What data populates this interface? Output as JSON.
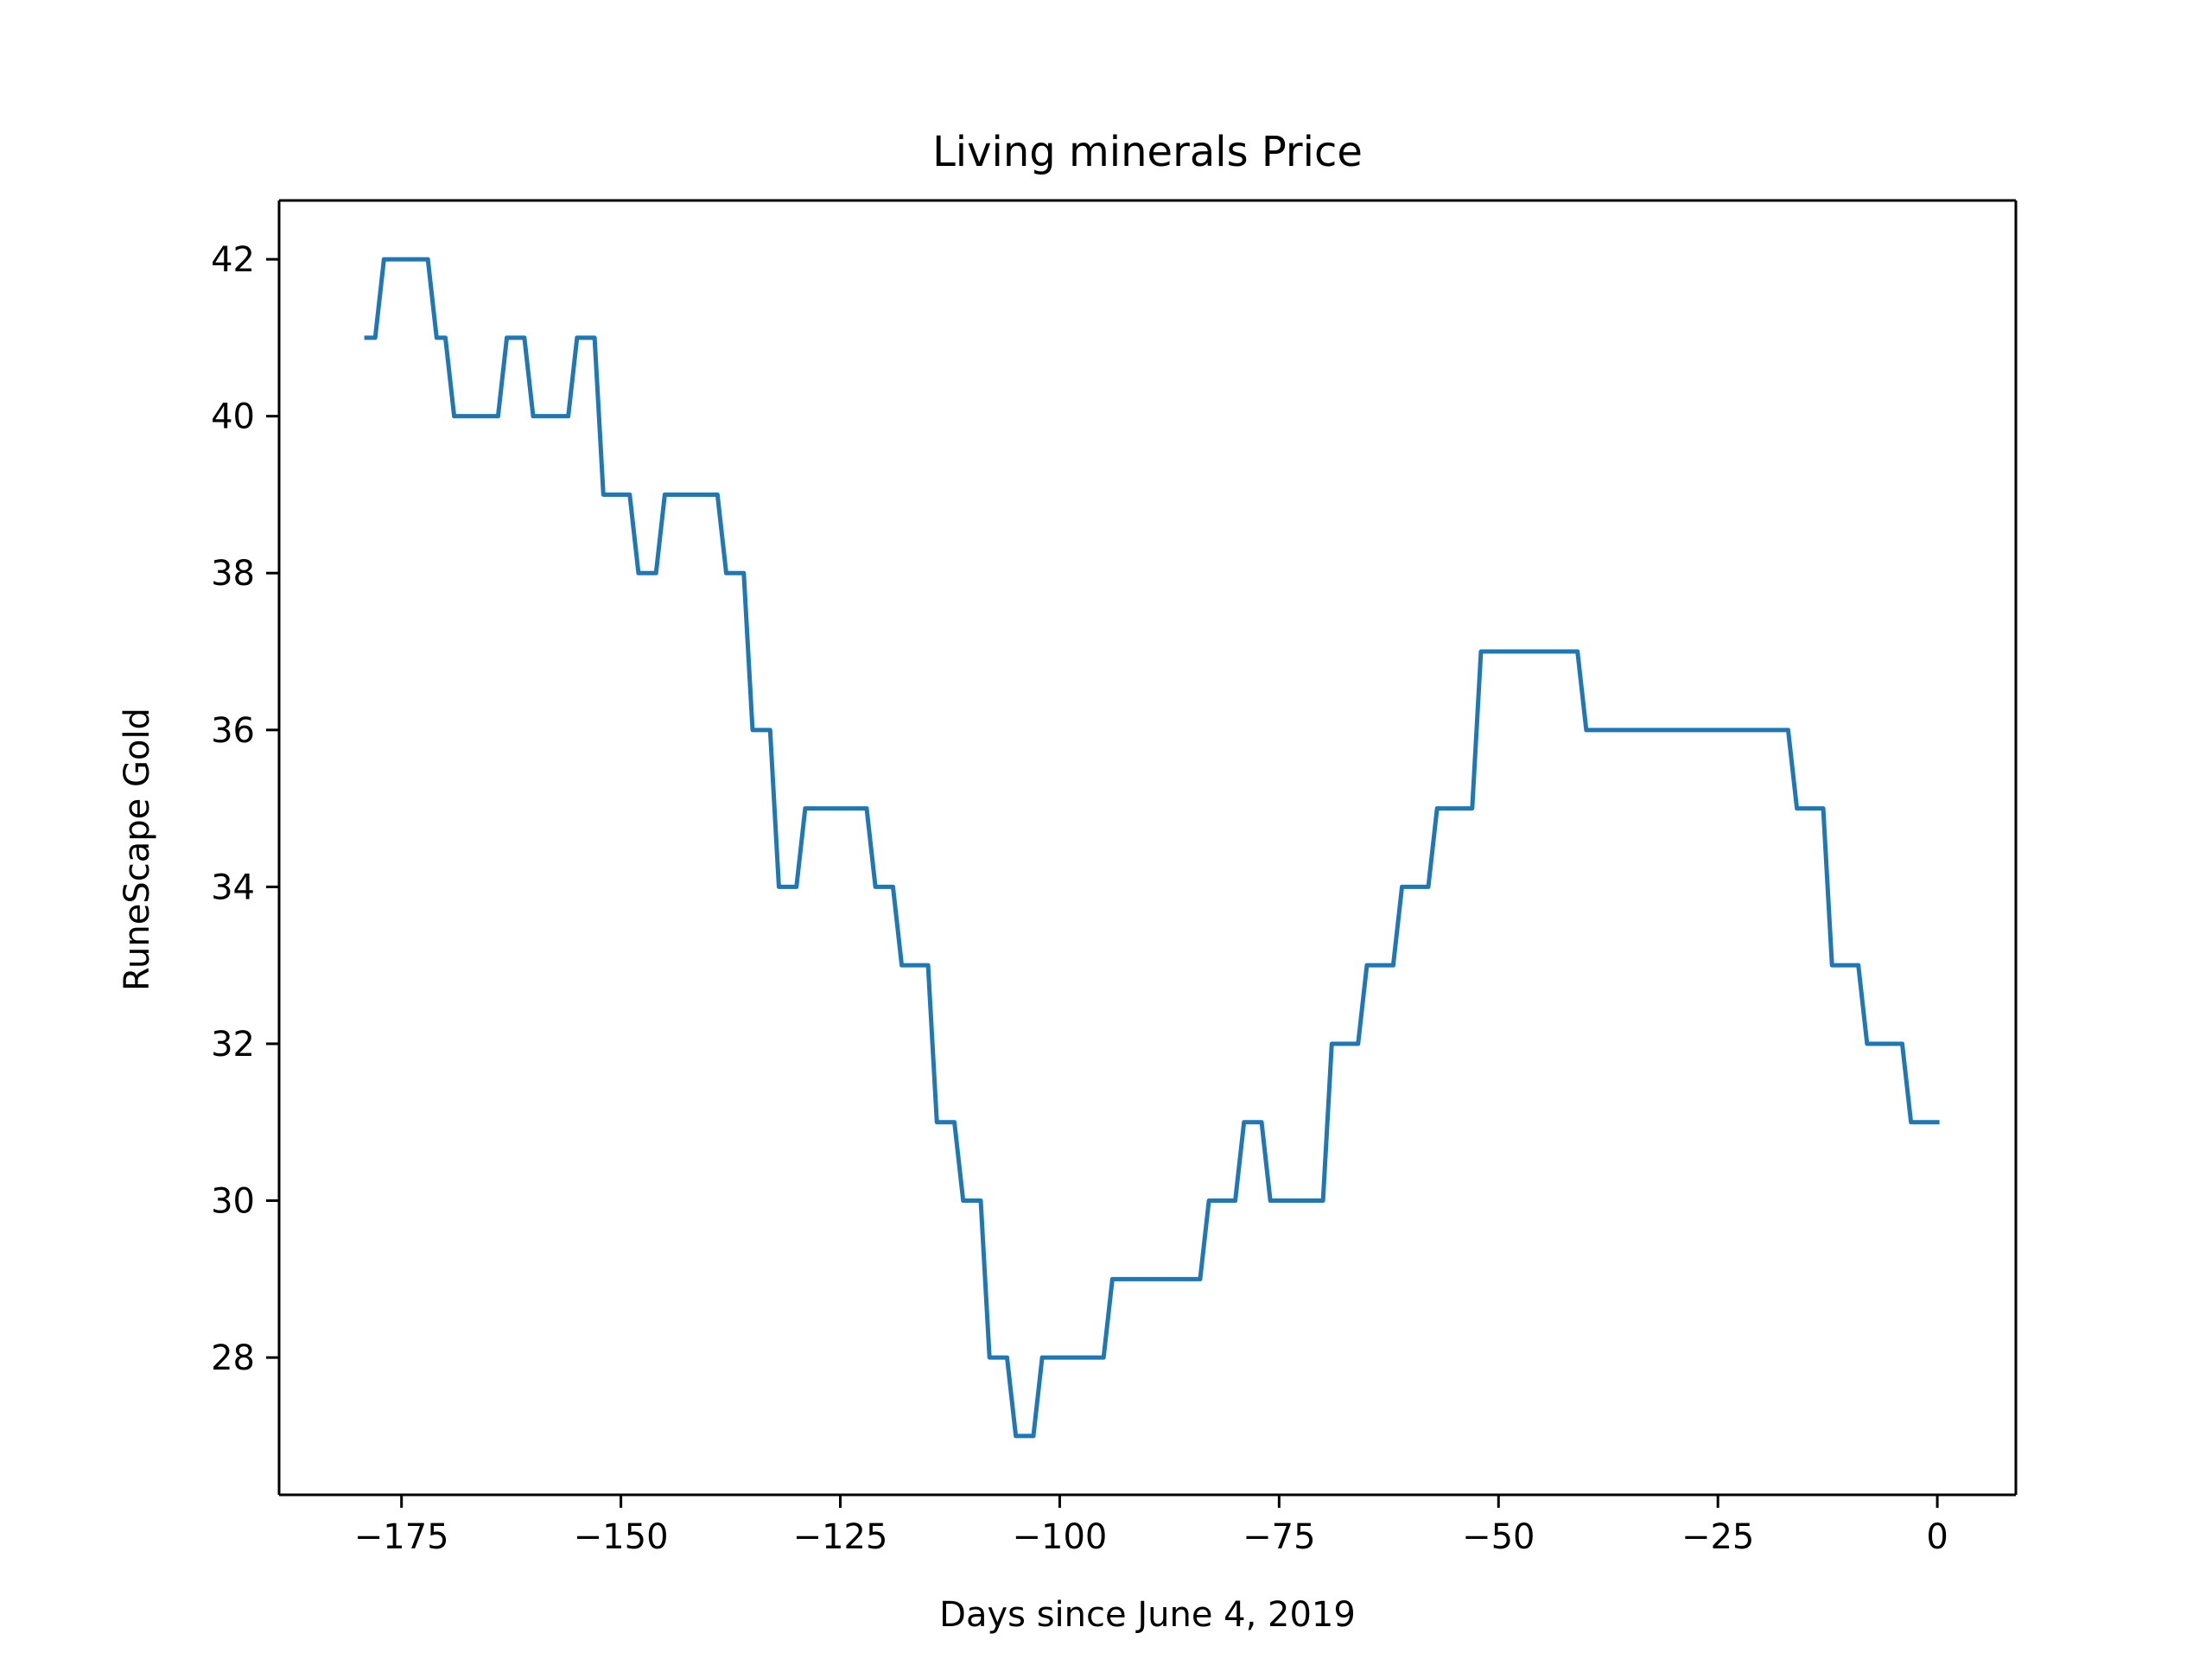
{
  "chart_data": {
    "type": "line",
    "title": "Living minerals Price",
    "xlabel": "Days since June 4, 2019",
    "ylabel": "RuneScape Gold",
    "xlim": [
      -188.95,
      8.95
    ],
    "ylim": [
      26.25,
      42.75
    ],
    "xticks": [
      -175,
      -150,
      -125,
      -100,
      -75,
      -50,
      -25,
      0
    ],
    "xtick_labels": [
      "−175",
      "−150",
      "−125",
      "−100",
      "−75",
      "−50",
      "−25",
      "0"
    ],
    "yticks": [
      28,
      30,
      32,
      34,
      36,
      38,
      40,
      42
    ],
    "ytick_labels": [
      "28",
      "30",
      "32",
      "34",
      "36",
      "38",
      "40",
      "42"
    ],
    "grid": false,
    "series": [
      {
        "color": "#1f77b4",
        "points": [
          [
            -179,
            41
          ],
          [
            -178,
            41
          ],
          [
            -177,
            42
          ],
          [
            -176,
            42
          ],
          [
            -175,
            42
          ],
          [
            -174,
            42
          ],
          [
            -173,
            42
          ],
          [
            -172,
            42
          ],
          [
            -171,
            41
          ],
          [
            -170,
            41
          ],
          [
            -169,
            40
          ],
          [
            -168,
            40
          ],
          [
            -167,
            40
          ],
          [
            -166,
            40
          ],
          [
            -165,
            40
          ],
          [
            -164,
            40
          ],
          [
            -163,
            41
          ],
          [
            -162,
            41
          ],
          [
            -161,
            41
          ],
          [
            -160,
            40
          ],
          [
            -159,
            40
          ],
          [
            -158,
            40
          ],
          [
            -157,
            40
          ],
          [
            -156,
            40
          ],
          [
            -155,
            41
          ],
          [
            -154,
            41
          ],
          [
            -153,
            41
          ],
          [
            -152,
            39
          ],
          [
            -151,
            39
          ],
          [
            -150,
            39
          ],
          [
            -149,
            39
          ],
          [
            -148,
            38
          ],
          [
            -147,
            38
          ],
          [
            -146,
            38
          ],
          [
            -145,
            39
          ],
          [
            -144,
            39
          ],
          [
            -143,
            39
          ],
          [
            -142,
            39
          ],
          [
            -141,
            39
          ],
          [
            -140,
            39
          ],
          [
            -139,
            39
          ],
          [
            -138,
            38
          ],
          [
            -137,
            38
          ],
          [
            -136,
            38
          ],
          [
            -135,
            36
          ],
          [
            -134,
            36
          ],
          [
            -133,
            36
          ],
          [
            -132,
            34
          ],
          [
            -131,
            34
          ],
          [
            -130,
            34
          ],
          [
            -129,
            35
          ],
          [
            -128,
            35
          ],
          [
            -127,
            35
          ],
          [
            -126,
            35
          ],
          [
            -125,
            35
          ],
          [
            -124,
            35
          ],
          [
            -123,
            35
          ],
          [
            -122,
            35
          ],
          [
            -121,
            34
          ],
          [
            -120,
            34
          ],
          [
            -119,
            34
          ],
          [
            -118,
            33
          ],
          [
            -117,
            33
          ],
          [
            -116,
            33
          ],
          [
            -115,
            33
          ],
          [
            -114,
            31
          ],
          [
            -113,
            31
          ],
          [
            -112,
            31
          ],
          [
            -111,
            30
          ],
          [
            -110,
            30
          ],
          [
            -109,
            30
          ],
          [
            -108,
            28
          ],
          [
            -107,
            28
          ],
          [
            -106,
            28
          ],
          [
            -105,
            27
          ],
          [
            -104,
            27
          ],
          [
            -103,
            27
          ],
          [
            -102,
            28
          ],
          [
            -101,
            28
          ],
          [
            -100,
            28
          ],
          [
            -99,
            28
          ],
          [
            -98,
            28
          ],
          [
            -97,
            28
          ],
          [
            -96,
            28
          ],
          [
            -95,
            28
          ],
          [
            -94,
            29
          ],
          [
            -93,
            29
          ],
          [
            -92,
            29
          ],
          [
            -91,
            29
          ],
          [
            -90,
            29
          ],
          [
            -89,
            29
          ],
          [
            -88,
            29
          ],
          [
            -87,
            29
          ],
          [
            -86,
            29
          ],
          [
            -85,
            29
          ],
          [
            -84,
            29
          ],
          [
            -83,
            30
          ],
          [
            -82,
            30
          ],
          [
            -81,
            30
          ],
          [
            -80,
            30
          ],
          [
            -79,
            31
          ],
          [
            -78,
            31
          ],
          [
            -77,
            31
          ],
          [
            -76,
            30
          ],
          [
            -75,
            30
          ],
          [
            -74,
            30
          ],
          [
            -73,
            30
          ],
          [
            -72,
            30
          ],
          [
            -71,
            30
          ],
          [
            -70,
            30
          ],
          [
            -69,
            32
          ],
          [
            -68,
            32
          ],
          [
            -67,
            32
          ],
          [
            -66,
            32
          ],
          [
            -65,
            33
          ],
          [
            -64,
            33
          ],
          [
            -63,
            33
          ],
          [
            -62,
            33
          ],
          [
            -61,
            34
          ],
          [
            -60,
            34
          ],
          [
            -59,
            34
          ],
          [
            -58,
            34
          ],
          [
            -57,
            35
          ],
          [
            -56,
            35
          ],
          [
            -55,
            35
          ],
          [
            -54,
            35
          ],
          [
            -53,
            35
          ],
          [
            -52,
            37
          ],
          [
            -51,
            37
          ],
          [
            -50,
            37
          ],
          [
            -49,
            37
          ],
          [
            -48,
            37
          ],
          [
            -47,
            37
          ],
          [
            -46,
            37
          ],
          [
            -45,
            37
          ],
          [
            -44,
            37
          ],
          [
            -43,
            37
          ],
          [
            -42,
            37
          ],
          [
            -41,
            37
          ],
          [
            -40,
            36
          ],
          [
            -39,
            36
          ],
          [
            -38,
            36
          ],
          [
            -37,
            36
          ],
          [
            -36,
            36
          ],
          [
            -35,
            36
          ],
          [
            -34,
            36
          ],
          [
            -33,
            36
          ],
          [
            -32,
            36
          ],
          [
            -31,
            36
          ],
          [
            -30,
            36
          ],
          [
            -29,
            36
          ],
          [
            -28,
            36
          ],
          [
            -27,
            36
          ],
          [
            -26,
            36
          ],
          [
            -25,
            36
          ],
          [
            -24,
            36
          ],
          [
            -23,
            36
          ],
          [
            -22,
            36
          ],
          [
            -21,
            36
          ],
          [
            -20,
            36
          ],
          [
            -19,
            36
          ],
          [
            -18,
            36
          ],
          [
            -17,
            36
          ],
          [
            -16,
            35
          ],
          [
            -15,
            35
          ],
          [
            -14,
            35
          ],
          [
            -13,
            35
          ],
          [
            -12,
            33
          ],
          [
            -11,
            33
          ],
          [
            -10,
            33
          ],
          [
            -9,
            33
          ],
          [
            -8,
            32
          ],
          [
            -7,
            32
          ],
          [
            -6,
            32
          ],
          [
            -5,
            32
          ],
          [
            -4,
            32
          ],
          [
            -3,
            31
          ],
          [
            -2,
            31
          ],
          [
            -1,
            31
          ],
          [
            0,
            31
          ]
        ]
      }
    ]
  }
}
